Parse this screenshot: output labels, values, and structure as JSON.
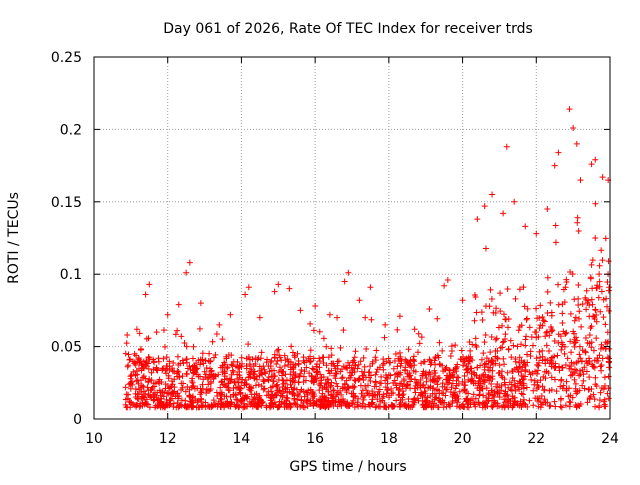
{
  "chart_data": {
    "type": "scatter",
    "title": "Day 061 of 2026, Rate Of TEC Index for receiver trds",
    "xlabel": "GPS time / hours",
    "ylabel": "ROTI / TECUs",
    "xlim": [
      10,
      24
    ],
    "ylim": [
      0,
      0.25
    ],
    "x_ticks": [
      {
        "value": 10,
        "label": "10"
      },
      {
        "value": 12,
        "label": "12"
      },
      {
        "value": 14,
        "label": "14"
      },
      {
        "value": 16,
        "label": "16"
      },
      {
        "value": 18,
        "label": "18"
      },
      {
        "value": 20,
        "label": "20"
      },
      {
        "value": 22,
        "label": "22"
      },
      {
        "value": 24,
        "label": "24"
      }
    ],
    "y_ticks": [
      {
        "value": 0,
        "label": "0"
      },
      {
        "value": 0.05,
        "label": "0.05"
      },
      {
        "value": 0.1,
        "label": "0.1"
      },
      {
        "value": 0.15,
        "label": "0.15"
      },
      {
        "value": 0.2,
        "label": "0.2"
      },
      {
        "value": 0.25,
        "label": "0.25"
      }
    ],
    "grid": true,
    "marker": "+",
    "marker_color": "#ff0000",
    "series": [
      {
        "name": "ROTI",
        "points": [
          [
            10.9,
            0.058
          ],
          [
            11.1,
            0.045
          ],
          [
            11.4,
            0.086
          ],
          [
            11.5,
            0.093
          ],
          [
            11.7,
            0.06
          ],
          [
            12.0,
            0.072
          ],
          [
            12.3,
            0.079
          ],
          [
            12.5,
            0.101
          ],
          [
            12.6,
            0.108
          ],
          [
            12.9,
            0.08
          ],
          [
            13.4,
            0.065
          ],
          [
            13.7,
            0.072
          ],
          [
            14.1,
            0.086
          ],
          [
            14.2,
            0.091
          ],
          [
            14.5,
            0.07
          ],
          [
            14.9,
            0.088
          ],
          [
            15.0,
            0.093
          ],
          [
            15.3,
            0.09
          ],
          [
            15.6,
            0.075
          ],
          [
            16.0,
            0.078
          ],
          [
            16.4,
            0.072
          ],
          [
            16.8,
            0.095
          ],
          [
            16.9,
            0.101
          ],
          [
            17.2,
            0.082
          ],
          [
            17.5,
            0.091
          ],
          [
            17.9,
            0.065
          ],
          [
            18.3,
            0.071
          ],
          [
            18.7,
            0.062
          ],
          [
            19.1,
            0.076
          ],
          [
            19.5,
            0.092
          ],
          [
            19.6,
            0.096
          ],
          [
            20.0,
            0.082
          ],
          [
            20.4,
            0.138
          ],
          [
            20.6,
            0.147
          ],
          [
            20.8,
            0.155
          ],
          [
            21.1,
            0.142
          ],
          [
            21.2,
            0.188
          ],
          [
            21.4,
            0.15
          ],
          [
            21.7,
            0.133
          ],
          [
            22.0,
            0.128
          ],
          [
            22.3,
            0.145
          ],
          [
            22.5,
            0.175
          ],
          [
            22.6,
            0.184
          ],
          [
            22.9,
            0.214
          ],
          [
            23.0,
            0.201
          ],
          [
            23.1,
            0.19
          ],
          [
            23.2,
            0.165
          ],
          [
            23.5,
            0.176
          ],
          [
            23.6,
            0.179
          ],
          [
            23.8,
            0.167
          ],
          [
            23.95,
            0.165
          ]
        ],
        "baseline_note": "dense cloud of points mostly between 0.005 and 0.06 across 10.8-24 h"
      }
    ]
  }
}
